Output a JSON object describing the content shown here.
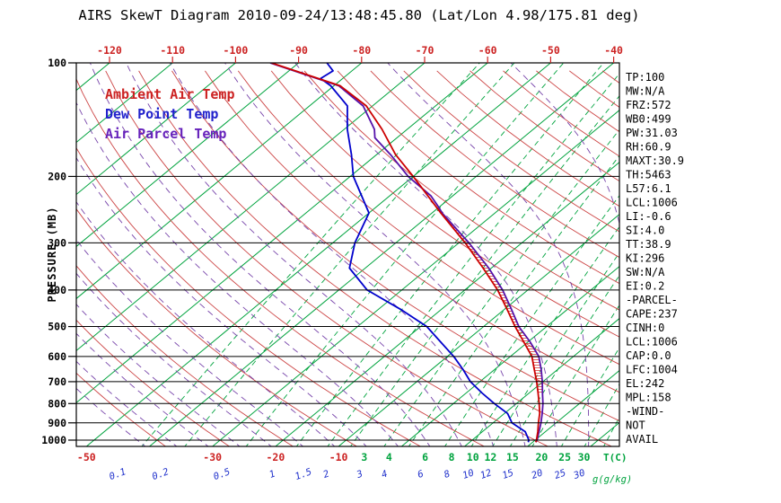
{
  "title": "AIRS SkewT Diagram 2010-09-24/13:48:45.80 (Lat/Lon 4.98/175.81 deg)",
  "ylabel": "PRESSURE (MB)",
  "x_unit_label": "T(C)",
  "mix_unit_label": "g(g/kg)",
  "legend": {
    "ambient": {
      "label": "Ambient Air Temp",
      "color": "#cc2222"
    },
    "dewpoint": {
      "label": "Dew Point Temp",
      "color": "#2222cc"
    },
    "parcel": {
      "label": "Air Parcel Temp",
      "color": "#6622bb"
    }
  },
  "stats": [
    "TP:100",
    "MW:N/A",
    "FRZ:572",
    "WB0:499",
    "PW:31.03",
    "RH:60.9",
    "MAXT:30.9",
    "TH:5463",
    "L57:6.1",
    "LCL:1006",
    "LI:-0.6",
    "SI:4.0",
    "TT:38.9",
    "KI:296",
    "SW:N/A",
    "EI:0.2",
    "-PARCEL-",
    "CAPE:237",
    "CINH:0",
    "LCL:1006",
    "CAP:0.0",
    "LFC:1004",
    "EL:242",
    "MPL:158",
    "-WIND-",
    "NOT",
    "AVAIL"
  ],
  "chart_data": {
    "type": "line",
    "variant": "skew-t-log-p",
    "title": "AIRS SkewT Diagram 2010-09-24/13:48:45.80 (Lat/Lon 4.98/175.81 deg)",
    "xlabel": "T(C)",
    "ylabel": "PRESSURE (MB)",
    "pressure_ticks": [
      100,
      200,
      300,
      400,
      500,
      600,
      700,
      800,
      900,
      1000
    ],
    "pressure_range_mb": [
      100,
      1040
    ],
    "top_temp_ticks": [
      -120,
      -110,
      -100,
      -90,
      -80,
      -70,
      -60,
      -50,
      -40
    ],
    "bottom_temp_ticks": [
      -50,
      -30,
      -20,
      -10
    ],
    "mixing_ratio_labels_green": [
      3,
      4,
      6,
      8,
      10,
      12,
      15,
      20,
      25,
      30
    ],
    "mixing_ratio_labels_blue": [
      0.1,
      0.2,
      0.5,
      1,
      1.5,
      2,
      3,
      4,
      6,
      8,
      10,
      12,
      15,
      20,
      25,
      30
    ],
    "isotherms_c": {
      "min": -130,
      "max": 40,
      "step": 10
    },
    "dry_adiabats_theta_c": {
      "min": -40,
      "max": 180,
      "step": 10
    },
    "moist_adiabats_start_c": {
      "min": -40,
      "max": 45,
      "step": 5
    },
    "grid": true,
    "legend_position": "upper-left-inside",
    "series": {
      "ambient": {
        "name": "Ambient Air Temp",
        "pressure_mb": [
          1013,
          1000,
          950,
          900,
          850,
          800,
          750,
          700,
          650,
          600,
          550,
          500,
          450,
          400,
          350,
          300,
          250,
          200,
          175,
          150,
          130,
          115,
          100
        ],
        "temp_c": [
          20.5,
          20.2,
          18.8,
          17.2,
          15.6,
          13.6,
          11.4,
          9.0,
          6.3,
          3.4,
          -0.6,
          -5.0,
          -9.6,
          -14.8,
          -21.3,
          -29.0,
          -38.6,
          -50.0,
          -57.0,
          -64.0,
          -71.0,
          -79.0,
          -94.3
        ]
      },
      "dewpoint": {
        "name": "Dew Point Temp",
        "pressure_mb": [
          1013,
          1000,
          950,
          900,
          850,
          800,
          750,
          700,
          650,
          600,
          550,
          500,
          450,
          400,
          350,
          300,
          250,
          200,
          175,
          150,
          130,
          115,
          110,
          105,
          100
        ],
        "temp_c": [
          19.3,
          19.0,
          16.8,
          13.0,
          10.5,
          6.5,
          2.5,
          -1.5,
          -5.0,
          -9.0,
          -13.8,
          -19.0,
          -26.5,
          -35.5,
          -42.5,
          -46.5,
          -50.0,
          -59.5,
          -64.0,
          -69.5,
          -74.0,
          -80.5,
          -83.5,
          -83.0,
          -85.5
        ]
      },
      "parcel": {
        "name": "Air Parcel Temp",
        "pressure_mb": [
          1013,
          1000,
          950,
          900,
          850,
          800,
          750,
          700,
          650,
          600,
          550,
          500,
          450,
          400,
          350,
          300,
          250,
          242,
          225,
          200,
          175,
          158,
          150,
          130,
          115,
          100
        ],
        "temp_c": [
          20.5,
          20.3,
          19.0,
          17.6,
          16.0,
          14.2,
          12.1,
          9.9,
          7.4,
          4.5,
          0.4,
          -4.4,
          -8.9,
          -14.0,
          -20.4,
          -28.4,
          -38.4,
          -39.9,
          -43.5,
          -50.8,
          -57.8,
          -63.5,
          -65.2,
          -71.5,
          -79.2,
          -94.5
        ]
      }
    },
    "cape_hatch_pressure_range": [
      250,
      750
    ],
    "colors": {
      "isotherm": "#00a33e",
      "mixing_ratio": "#00a33e",
      "dry_adiabat": "#cc4444",
      "moist_adiabat": "#7744aa",
      "ambient": "#cc0000",
      "dewpoint": "#0000cc",
      "parcel": "#5511aa",
      "axis_red": "#cc2222",
      "axis_green": "#00a33e",
      "axis_blue": "#2233cc",
      "black": "#000000"
    }
  }
}
